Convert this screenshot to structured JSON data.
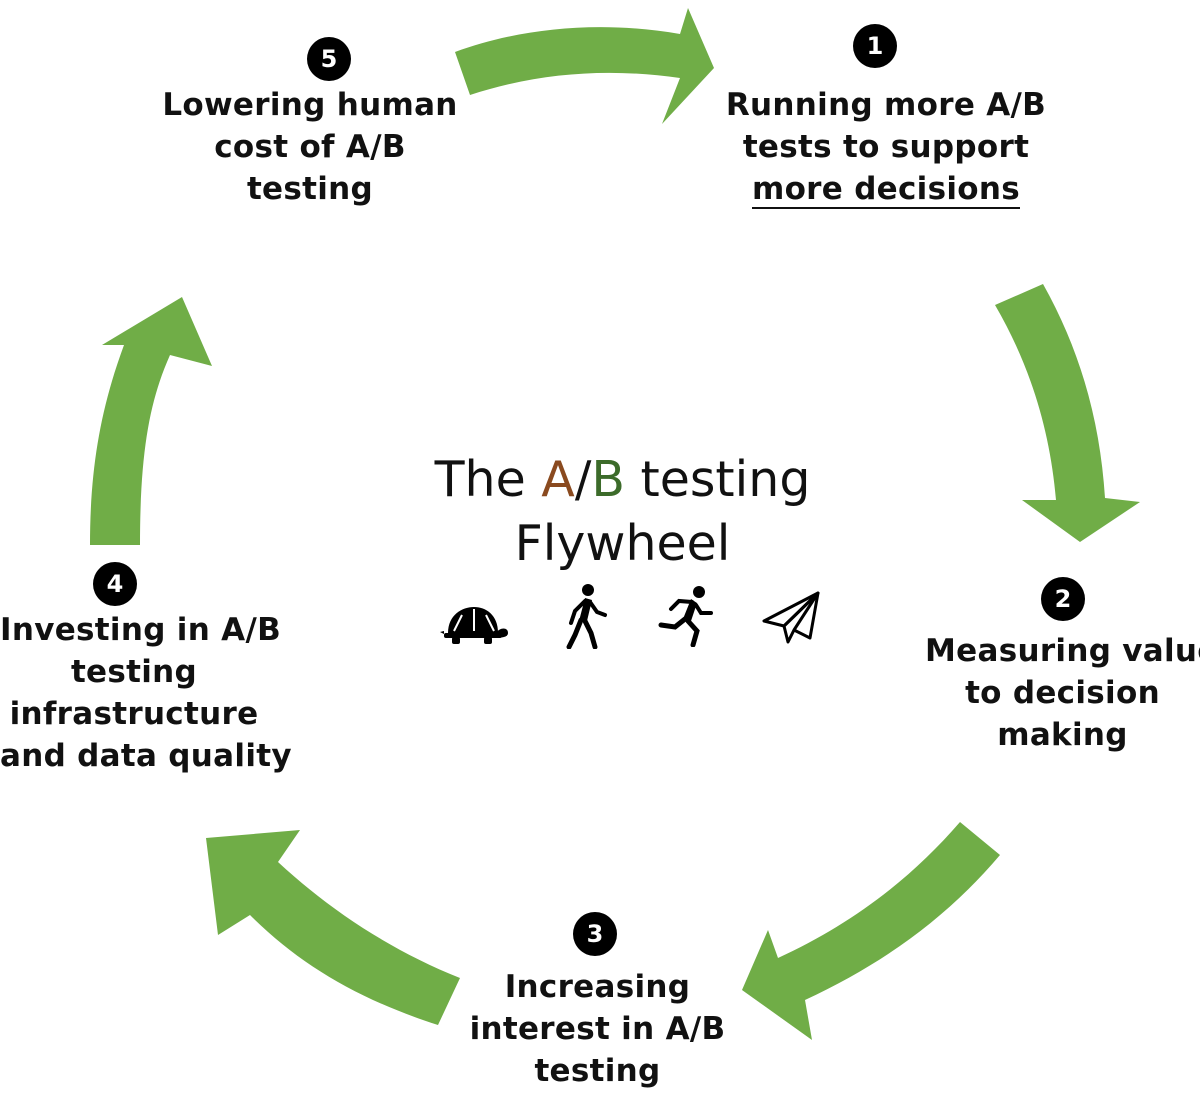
{
  "title": {
    "prefix": "The ",
    "letter_a": "A",
    "slash": "/",
    "letter_b": "B",
    "suffix": " testing",
    "line2": "Flywheel",
    "colors": {
      "a": "#8a4a1f",
      "b": "#3c6b2a"
    }
  },
  "arrow_color": "#70ad47",
  "icons": [
    "turtle-icon",
    "walking-person-icon",
    "running-person-icon",
    "paper-plane-icon"
  ],
  "steps": [
    {
      "number": "1",
      "lines": [
        "Running more A/B",
        "tests to support",
        "more decisions"
      ]
    },
    {
      "number": "2",
      "lines": [
        "Measuring value",
        "to decision",
        "making"
      ]
    },
    {
      "number": "3",
      "lines": [
        "Increasing",
        "interest in A/B",
        "testing"
      ]
    },
    {
      "number": "4",
      "lines": [
        "Investing in A/B",
        "testing",
        "infrastructure",
        "and data quality"
      ]
    },
    {
      "number": "5",
      "lines": [
        "Lowering human",
        "cost of A/B",
        "testing"
      ]
    }
  ]
}
